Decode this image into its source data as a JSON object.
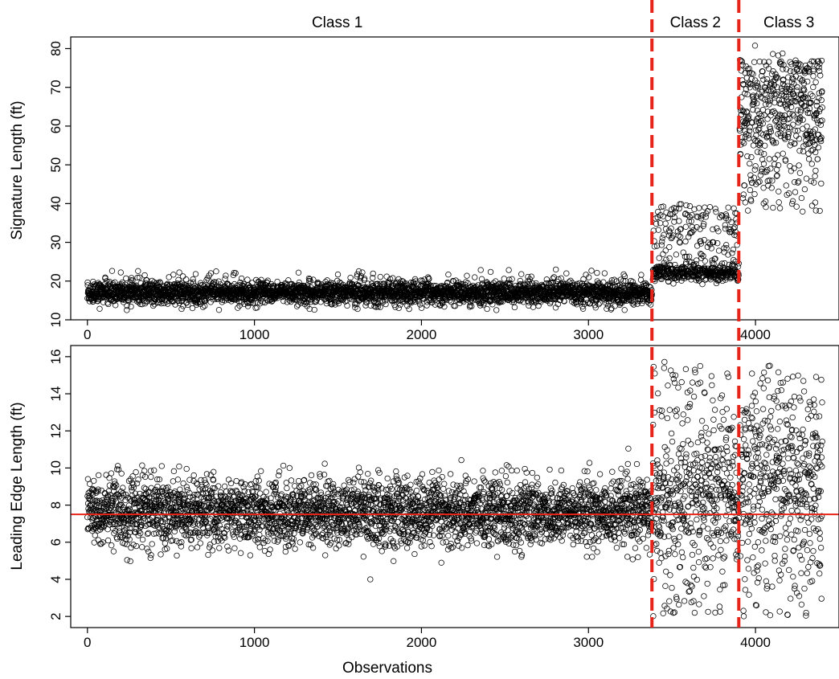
{
  "chart_data": [
    {
      "type": "scatter",
      "panel": "top",
      "title": "",
      "xlabel": "",
      "ylabel": "Signature Length (ft)",
      "xlim": [
        -100,
        4500
      ],
      "ylim": [
        10,
        83
      ],
      "x_ticks": [
        0,
        1000,
        2000,
        3000,
        4000
      ],
      "y_ticks": [
        10,
        20,
        30,
        40,
        50,
        60,
        70,
        80
      ],
      "grid": false,
      "marker": "open-circle",
      "marker_color": "#000000",
      "n_points_approx": 4400,
      "class_labels": [
        "Class 1",
        "Class 2",
        "Class 3"
      ],
      "class_boundaries": [
        3380,
        3900
      ],
      "boundary_style": "dashed",
      "boundary_color": "#e8241a",
      "groups": [
        {
          "name": "Class 1",
          "x_range": [
            0,
            3380
          ],
          "dense_y_range": [
            14,
            20
          ],
          "sparse_y_range": [
            12.5,
            23
          ]
        },
        {
          "name": "Class 2",
          "x_range": [
            3385,
            3900
          ],
          "dense_y_range": [
            20,
            24
          ],
          "sparse_y_range": [
            16.5,
            40.5
          ]
        },
        {
          "name": "Class 3",
          "x_range": [
            3905,
            4400
          ],
          "dense_y_range": [
            55,
            77
          ],
          "sparse_y_range": [
            37.5,
            82.5
          ]
        }
      ]
    },
    {
      "type": "scatter",
      "panel": "bottom",
      "title": "",
      "xlabel": "Observations",
      "ylabel": "Leading Edge Length (ft)",
      "xlim": [
        -100,
        4500
      ],
      "ylim": [
        1.4,
        16.6
      ],
      "x_ticks": [
        0,
        1000,
        2000,
        3000,
        4000
      ],
      "y_ticks": [
        2,
        4,
        6,
        8,
        10,
        12,
        14,
        16
      ],
      "grid": false,
      "marker": "open-circle",
      "marker_color": "#000000",
      "n_points_approx": 4400,
      "class_boundaries": [
        3380,
        3900
      ],
      "boundary_style": "dashed",
      "boundary_color": "#e8241a",
      "reference_line": {
        "y": 7.5,
        "color": "#e8241a",
        "style": "solid"
      },
      "groups": [
        {
          "name": "Class 1",
          "x_range": [
            0,
            3380
          ],
          "center": 7.6,
          "spread": 0.9,
          "y_range": [
            4.0,
            11.6
          ]
        },
        {
          "name": "Class 2",
          "x_range": [
            3385,
            3900
          ],
          "center": 8.3,
          "spread": 2.3,
          "y_range": [
            2.0,
            15.8
          ]
        },
        {
          "name": "Class 3",
          "x_range": [
            3905,
            4400
          ],
          "center": 9.3,
          "spread": 2.9,
          "y_range": [
            2.0,
            15.6
          ]
        }
      ]
    }
  ]
}
